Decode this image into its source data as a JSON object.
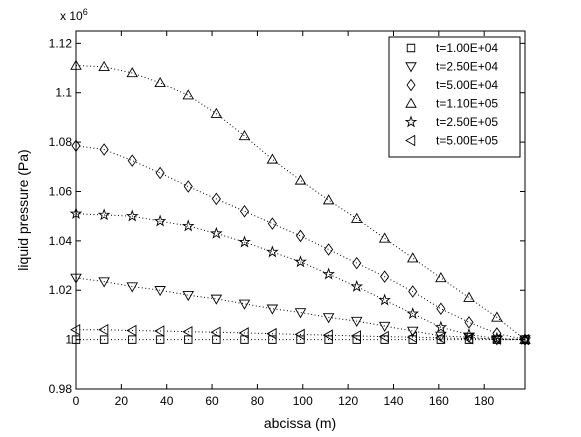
{
  "chart_data": {
    "type": "line",
    "xlabel": "abcissa (m)",
    "ylabel": "liquid pressure (Pa)",
    "y_multiplier": "x 10",
    "y_multiplier_exponent": "6",
    "xlim": [
      0,
      198
    ],
    "ylim": [
      0.98,
      1.125
    ],
    "xticks": [
      0,
      20,
      40,
      60,
      80,
      100,
      120,
      140,
      160,
      180
    ],
    "xtick_labels": [
      "0",
      "20",
      "40",
      "60",
      "80",
      "100",
      "120",
      "140",
      "160",
      "180"
    ],
    "yticks": [
      0.98,
      1,
      1.02,
      1.04,
      1.06,
      1.08,
      1.1,
      1.12
    ],
    "ytick_labels": [
      "0.98",
      "1",
      "1.02",
      "1.04",
      "1.06",
      "1.08",
      "1.1",
      "1.12"
    ],
    "grid": false,
    "legend_position": "top-right",
    "x": [
      0,
      12.4,
      24.8,
      37.1,
      49.5,
      61.9,
      74.3,
      86.6,
      99,
      111.4,
      123.8,
      136.1,
      148.5,
      160.9,
      173.3,
      185.6,
      198
    ],
    "series": [
      {
        "name": "t=1.00E+04",
        "marker": "square",
        "values": [
          1.0,
          1.0,
          1.0,
          1.0,
          1.0,
          1.0,
          1.0,
          1.0,
          1.0,
          1.0,
          1.0,
          1.0,
          1.0,
          1.0,
          1.0,
          1.0,
          1.0
        ]
      },
      {
        "name": "t=2.50E+04",
        "marker": "triangle-down",
        "values": [
          1.025,
          1.0235,
          1.0215,
          1.02,
          1.018,
          1.0165,
          1.0145,
          1.0125,
          1.011,
          1.009,
          1.0075,
          1.0055,
          1.0035,
          1.0015,
          1.001,
          1.0,
          1.0
        ]
      },
      {
        "name": "t=5.00E+04",
        "marker": "diamond",
        "values": [
          1.0785,
          1.077,
          1.0725,
          1.0675,
          1.062,
          1.057,
          1.052,
          1.047,
          1.042,
          1.0365,
          1.031,
          1.0255,
          1.0195,
          1.0125,
          1.007,
          1.0025,
          1.0
        ]
      },
      {
        "name": "t=1.10E+05",
        "marker": "triangle-up",
        "values": [
          1.111,
          1.1105,
          1.108,
          1.104,
          1.099,
          1.0915,
          1.0825,
          1.073,
          1.0645,
          1.0565,
          1.049,
          1.041,
          1.033,
          1.025,
          1.017,
          1.009,
          1.0
        ]
      },
      {
        "name": "t=2.50E+05",
        "marker": "pentagram",
        "values": [
          1.051,
          1.0505,
          1.05,
          1.048,
          1.046,
          1.043,
          1.0395,
          1.0355,
          1.0315,
          1.0265,
          1.0215,
          1.016,
          1.0105,
          1.005,
          1.002,
          1.0005,
          1.0
        ]
      },
      {
        "name": "t=5.00E+05",
        "marker": "triangle-left",
        "values": [
          1.004,
          1.004,
          1.0037,
          1.0035,
          1.0032,
          1.003,
          1.0027,
          1.0024,
          1.0021,
          1.0018,
          1.0015,
          1.0012,
          1.001,
          1.0007,
          1.0004,
          1.0002,
          1.0
        ]
      }
    ]
  }
}
